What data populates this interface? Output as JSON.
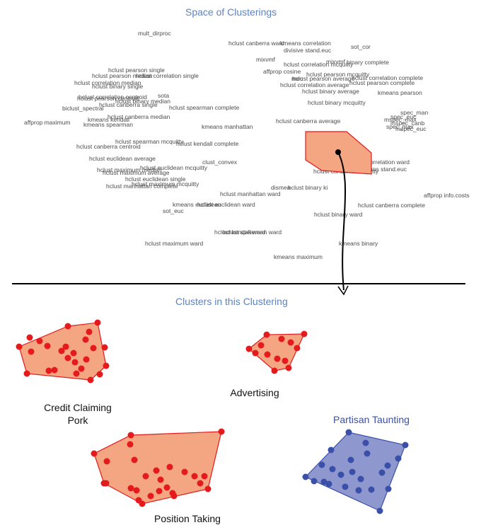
{
  "top_title": "Space of Clusterings",
  "bottom_title": "Clusters in this Clustering",
  "method_labels": [
    "mult_dirproc",
    "hclust canberra ward",
    "kmeans correlation",
    "sot_cor",
    "divisive stand.euc",
    "mixvmf",
    "mixvmf",
    "binary complete",
    "hclust correlation mcquitty",
    "affprop cosine",
    "hclust pearson mcquitty",
    "hclust pearson average",
    "hclust correlation complete",
    "hclust correlation average",
    "hclust pearson complete",
    "mec",
    "hclust binary average",
    "kmeans pearson",
    "hclust binary mcquitty",
    "hclust pearson single",
    "hclust pearson median",
    "hclust correlation single",
    "hclust correlation median",
    "hclust binary single",
    "hclust correlation centroid",
    "sota",
    "hclust pearson centroid",
    "hclust binary median",
    "hclust canberra single",
    "biclust_spectral",
    "hclust spearman complete",
    "hclust canberra median",
    "kmeans kendall",
    "affprop maximum",
    "kmeans spearman",
    "kmeans manhattan",
    "hclust canberra average",
    "spec_man",
    "spec_euc",
    "mspec_max",
    "mspec_canb",
    "spec_max",
    "mspec_euc",
    "hclust kendall complete",
    "hclust canberra centroid",
    "hclust spearman mcquitty",
    "clust_convex",
    "hclust euclidean average",
    "hclust euclidean mcquitty",
    "hclust maximum median",
    "hclust maximum average",
    "hclust euclidean single",
    "hclust maximum mcquitty",
    "hclust manhattan complete",
    "hclust correlation ward",
    "kmeans stand.euc",
    "hclust canberra mcquitty",
    "hclust manhattan ward",
    "dismea",
    "hclust binary ki",
    "kmeans euclidean",
    "hclust euclidean ward",
    "hclust canberra complete",
    "affprop info.costs",
    "sot_euc",
    "hclust binary ward",
    "hclust kendall ward",
    "hclust spearman ward",
    "kmeans binary",
    "hclust maximum ward",
    "kmeans maximum"
  ],
  "clusters": [
    {
      "label": "Credit Claiming\nPork",
      "color": "#e41a1c",
      "fill": "#f4a582"
    },
    {
      "label": "Advertising",
      "color": "#e41a1c",
      "fill": "#f4a582"
    },
    {
      "label": "Partisan Taunting",
      "color": "#3a4fa8",
      "fill": "#8f97cf"
    },
    {
      "label": "Position Taking",
      "color": "#e41a1c",
      "fill": "#f4a582"
    }
  ],
  "colors": {
    "title": "#5b84c4",
    "red": "#e41a1c",
    "red_fill": "#f4a582",
    "blue": "#3a4fa8",
    "blue_fill": "#8f97cf",
    "divider": "#000000"
  }
}
